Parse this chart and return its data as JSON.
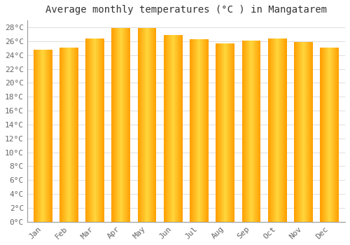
{
  "title": "Average monthly temperatures (°C ) in Mangatarem",
  "months": [
    "Jan",
    "Feb",
    "Mar",
    "Apr",
    "May",
    "Jun",
    "Jul",
    "Aug",
    "Sep",
    "Oct",
    "Nov",
    "Dec"
  ],
  "values": [
    24.8,
    25.1,
    26.4,
    27.9,
    27.9,
    26.9,
    26.3,
    25.7,
    26.1,
    26.4,
    25.9,
    25.1
  ],
  "ylim": [
    0,
    29
  ],
  "yticks": [
    0,
    2,
    4,
    6,
    8,
    10,
    12,
    14,
    16,
    18,
    20,
    22,
    24,
    26,
    28
  ],
  "bar_color_center": "#FFD740",
  "bar_color_edge": "#FFA000",
  "background_color": "#FFFFFF",
  "grid_color": "#DDDDDD",
  "title_fontsize": 10,
  "tick_fontsize": 8,
  "font_family": "monospace"
}
